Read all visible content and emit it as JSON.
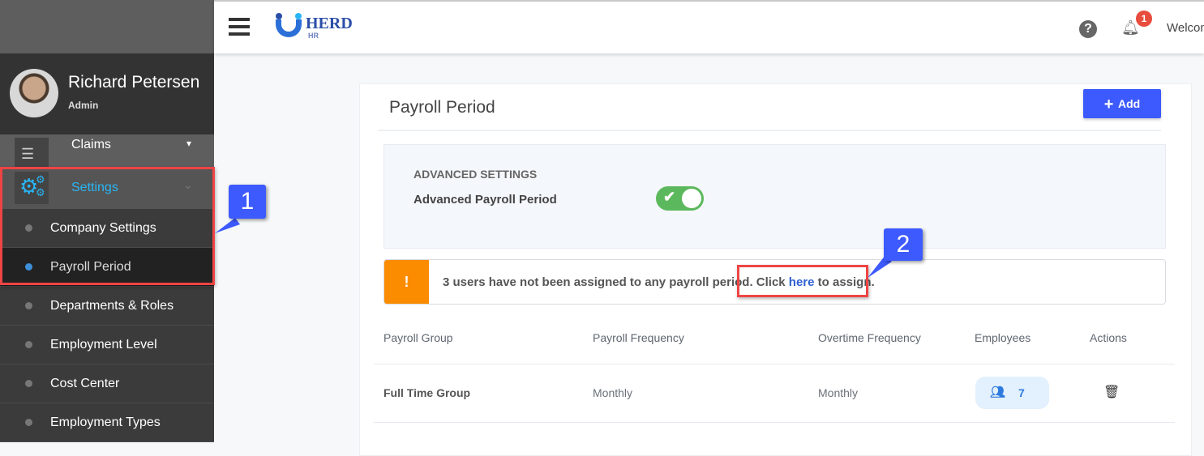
{
  "app": {
    "logo_text": "HERD",
    "logo_sub": "HR",
    "welcome": "Welcome",
    "notification_count": "1"
  },
  "user": {
    "name": "Richard Petersen",
    "role": "Admin"
  },
  "sidebar": {
    "items": [
      {
        "label": "Claims",
        "icon": "list-icon"
      },
      {
        "label": "Settings",
        "icon": "gears-icon",
        "active": true
      }
    ],
    "sub_items": [
      {
        "label": "Company Settings"
      },
      {
        "label": "Payroll Period",
        "active": true
      },
      {
        "label": "Departments & Roles"
      },
      {
        "label": "Employment Level"
      },
      {
        "label": "Cost Center"
      },
      {
        "label": "Employment Types"
      }
    ]
  },
  "page": {
    "title": "Payroll Period",
    "add_label": "Add",
    "advanced": {
      "heading": "ADVANCED SETTINGS",
      "label": "Advanced Payroll Period",
      "enabled": true
    },
    "alert": {
      "pre": "3 users have not been assigned to any payroll period. Click ",
      "link": "here",
      "post": " to assign.",
      "icon": "!"
    },
    "table": {
      "headers": [
        "Payroll Group",
        "Payroll Frequency",
        "Overtime Frequency",
        "Employees",
        "Actions"
      ],
      "rows": [
        {
          "group": "Full Time Group",
          "payroll_frequency": "Monthly",
          "overtime_frequency": "Monthly",
          "employees": "7"
        }
      ]
    }
  },
  "annotations": [
    "1",
    "2"
  ],
  "colors": {
    "accent": "#3d5afe",
    "active_menu": "#29b6f6",
    "alert": "#fb8c00",
    "toggle": "#5cb85c",
    "annotation_box": "#ef4444"
  }
}
